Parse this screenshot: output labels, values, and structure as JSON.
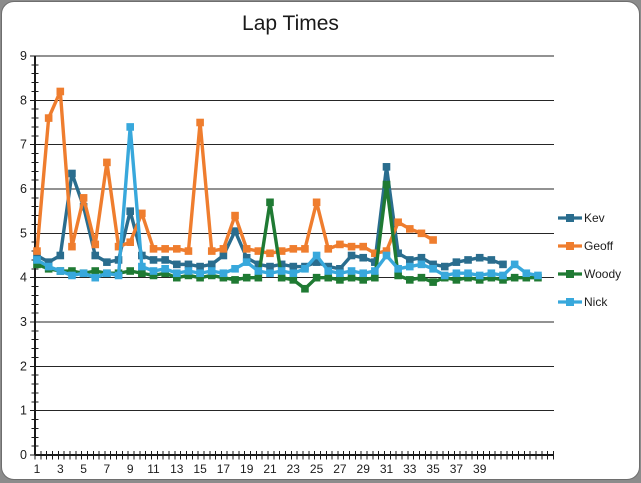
{
  "chart_data": {
    "type": "line",
    "title": "Lap Times",
    "xlabel": "",
    "ylabel": "",
    "ylim": [
      0,
      9
    ],
    "y_major_ticks": [
      0,
      1,
      2,
      3,
      4,
      5,
      6,
      7,
      8,
      9
    ],
    "y_minor_step": 0.2,
    "x_tick_labels": [
      "1",
      "3",
      "5",
      "7",
      "9",
      "11",
      "13",
      "15",
      "17",
      "19",
      "21",
      "23",
      "25",
      "27",
      "29",
      "31",
      "33",
      "35",
      "37",
      "39"
    ],
    "categories": [
      1,
      2,
      3,
      4,
      5,
      6,
      7,
      8,
      9,
      10,
      11,
      12,
      13,
      14,
      15,
      16,
      17,
      18,
      19,
      20,
      21,
      22,
      23,
      24,
      25,
      26,
      27,
      28,
      29,
      30,
      31,
      32,
      33,
      34,
      35,
      36,
      37,
      38,
      39,
      40,
      41,
      42,
      43,
      44
    ],
    "grid": "horizontal-major",
    "legend_position": "right",
    "marker": "square",
    "series": [
      {
        "name": "Kev",
        "color": "#2a6d8e",
        "values": [
          4.5,
          4.35,
          4.5,
          6.35,
          5.6,
          4.5,
          4.35,
          4.4,
          5.5,
          4.5,
          4.4,
          4.4,
          4.3,
          4.3,
          4.25,
          4.3,
          4.5,
          5.05,
          4.45,
          4.3,
          4.25,
          4.3,
          4.25,
          4.25,
          4.35,
          4.25,
          4.2,
          4.5,
          4.45,
          4.35,
          6.5,
          4.55,
          4.4,
          4.45,
          4.3,
          4.25,
          4.35,
          4.4,
          4.45,
          4.4,
          4.3,
          null,
          null,
          null
        ]
      },
      {
        "name": "Geoff",
        "color": "#ef7d2e",
        "values": [
          4.6,
          7.6,
          8.2,
          4.7,
          5.8,
          4.75,
          6.6,
          4.7,
          4.8,
          5.45,
          4.65,
          4.65,
          4.65,
          4.6,
          7.5,
          4.6,
          4.65,
          5.4,
          4.65,
          4.6,
          4.55,
          4.6,
          4.65,
          4.65,
          5.7,
          4.65,
          4.75,
          4.7,
          4.7,
          4.55,
          4.6,
          5.25,
          5.1,
          5.0,
          4.85,
          null,
          null,
          null,
          null,
          null,
          null,
          null,
          null,
          null
        ]
      },
      {
        "name": "Woody",
        "color": "#1f7a33",
        "values": [
          4.3,
          4.2,
          4.15,
          4.15,
          4.1,
          4.15,
          4.1,
          4.1,
          4.15,
          4.1,
          4.05,
          4.1,
          4.0,
          4.05,
          4.0,
          4.05,
          4.0,
          3.95,
          4.0,
          4.0,
          5.7,
          4.0,
          3.95,
          3.75,
          4.0,
          4.0,
          3.95,
          4.0,
          3.95,
          4.0,
          6.1,
          4.05,
          3.95,
          4.0,
          3.9,
          4.0,
          3.95,
          4.0,
          3.95,
          4.0,
          3.95,
          4.0,
          4.0,
          4.0
        ]
      },
      {
        "name": "Nick",
        "color": "#38a8dc",
        "values": [
          4.4,
          4.25,
          4.15,
          4.05,
          4.1,
          4.0,
          4.1,
          4.05,
          7.4,
          4.25,
          4.15,
          4.2,
          4.1,
          4.15,
          4.1,
          4.15,
          4.1,
          4.2,
          4.35,
          4.15,
          4.1,
          4.15,
          4.1,
          4.2,
          4.5,
          4.15,
          4.1,
          4.15,
          4.1,
          4.15,
          4.5,
          4.2,
          4.25,
          4.3,
          4.2,
          4.05,
          4.1,
          4.1,
          4.05,
          4.1,
          4.05,
          4.3,
          4.1,
          4.05
        ]
      }
    ],
    "colors": {
      "gridline": "#262626",
      "axis": "#1a1a1a",
      "tick_label": "#1c1c1c",
      "title": "#1a1a1a",
      "plot_background": "#ffffff",
      "page_background": "#8c8c8c"
    }
  }
}
